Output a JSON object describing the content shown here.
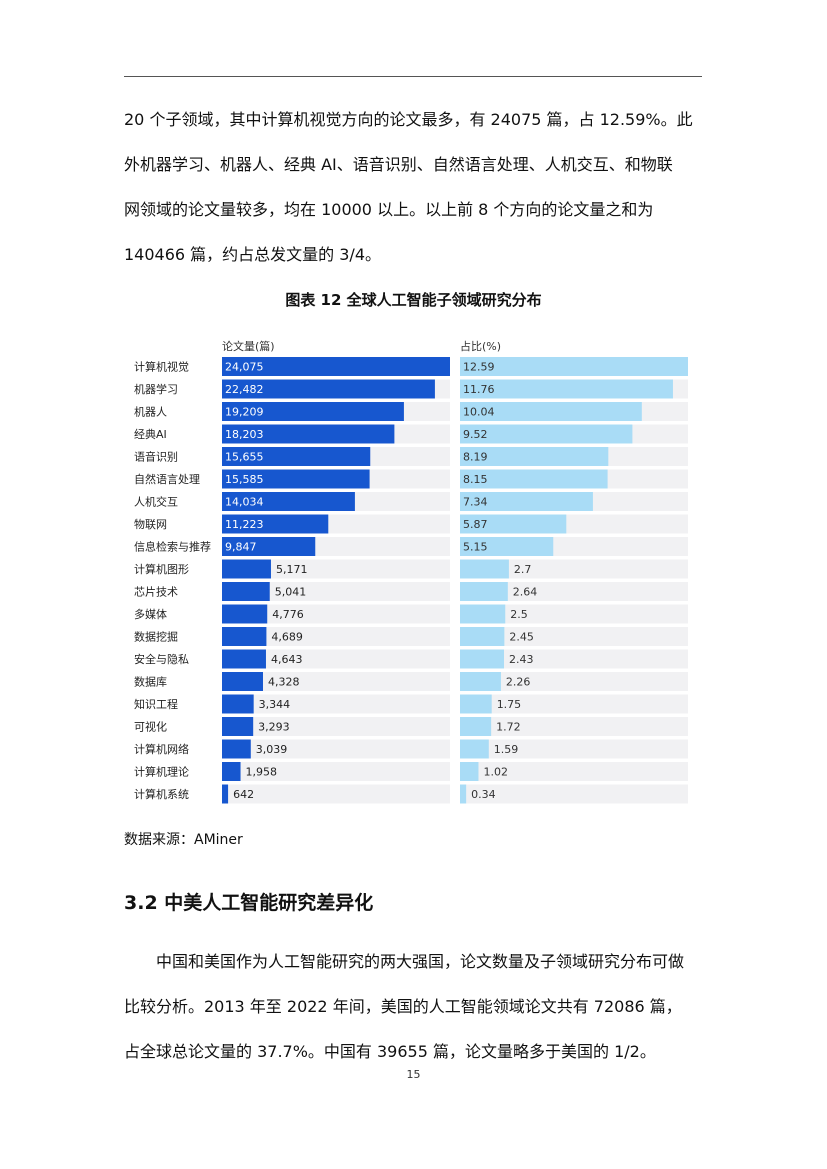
{
  "body_text": {
    "lines": [
      "20 个子领域，其中计算机视觉方向的论文最多，有 24075 篇，占 12.59%。此",
      "外机器学习、机器人、经典 AI、语音识别、自然语言处理、人机交互、和物联",
      "网领域的论文量较多，均在 10000 以上。以上前 8 个方向的论文量之和为",
      "140466 篇，约占总发文量的 3/4。"
    ]
  },
  "figure": {
    "title": "图表 12 全球人工智能子领域研究分布",
    "source": "数据来源：AMiner"
  },
  "chart_data": {
    "type": "bar",
    "orientation": "horizontal",
    "categories": [
      "计算机视觉",
      "机器学习",
      "机器人",
      "经典AI",
      "语音识别",
      "自然语言处理",
      "人机交互",
      "物联网",
      "信息检索与推荐",
      "计算机图形",
      "芯片技术",
      "多媒体",
      "数据挖掘",
      "安全与隐私",
      "数据库",
      "知识工程",
      "可视化",
      "计算机网络",
      "计算机理论",
      "计算机系统"
    ],
    "series": [
      {
        "name": "论文量(篇)",
        "values": [
          24075,
          22482,
          19209,
          18203,
          15655,
          15585,
          14034,
          11223,
          9847,
          5171,
          5041,
          4776,
          4689,
          4643,
          4328,
          3344,
          3293,
          3039,
          1958,
          642
        ],
        "labels": [
          "24,075",
          "22,482",
          "19,209",
          "18,203",
          "15,655",
          "15,585",
          "14,034",
          "11,223",
          "9,847",
          "5,171",
          "5,041",
          "4,776",
          "4,689",
          "4,643",
          "4,328",
          "3,344",
          "3,293",
          "3,039",
          "1,958",
          "642"
        ],
        "color": "#1757cf",
        "max": 24075
      },
      {
        "name": "占比(%)",
        "values": [
          12.59,
          11.76,
          10.04,
          9.52,
          8.19,
          8.15,
          7.34,
          5.87,
          5.15,
          2.7,
          2.64,
          2.5,
          2.45,
          2.43,
          2.26,
          1.75,
          1.72,
          1.59,
          1.02,
          0.34
        ],
        "labels": [
          "12.59",
          "11.76",
          "10.04",
          "9.52",
          "8.19",
          "8.15",
          "7.34",
          "5.87",
          "5.15",
          "2.7",
          "2.64",
          "2.5",
          "2.45",
          "2.43",
          "2.26",
          "1.75",
          "1.72",
          "1.59",
          "1.02",
          "0.34"
        ],
        "color": "#a9dcf6",
        "max": 12.59
      }
    ],
    "track_color": "#f1f1f3"
  },
  "section": {
    "heading": "3.2 中美人工智能研究差异化",
    "lines": [
      "中国和美国作为人工智能研究的两大强国，论文数量及子领域研究分布可做",
      "比较分析。2013 年至 2022 年间，美国的人工智能领域论文共有 72086 篇，",
      "占全球总论文量的 37.7%。中国有 39655 篇，论文量略多于美国的 1/2。"
    ]
  },
  "page_number": "15"
}
